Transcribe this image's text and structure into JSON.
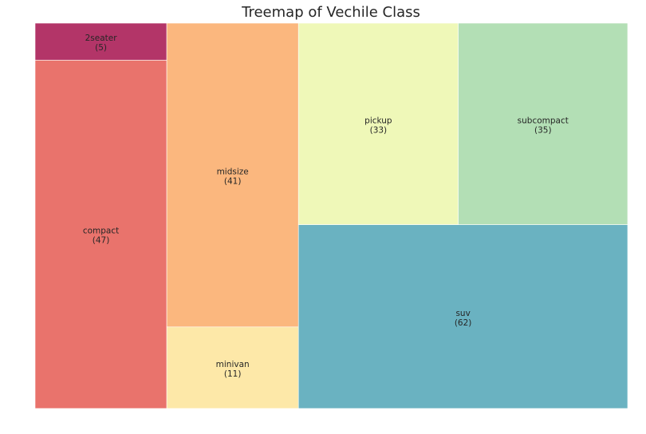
{
  "chart_data": {
    "type": "treemap",
    "title": "Treemap of Vechile Class",
    "items": [
      {
        "label": "2seater",
        "value": 5,
        "color": "#b33568"
      },
      {
        "label": "compact",
        "value": 47,
        "color": "#e9736c"
      },
      {
        "label": "midsize",
        "value": 41,
        "color": "#fbb77e"
      },
      {
        "label": "minivan",
        "value": 11,
        "color": "#fde8a8"
      },
      {
        "label": "pickup",
        "value": 33,
        "color": "#eff8b8"
      },
      {
        "label": "subcompact",
        "value": 35,
        "color": "#b3dfb5"
      },
      {
        "label": "suv",
        "value": 62,
        "color": "#6ab2c1"
      }
    ]
  }
}
